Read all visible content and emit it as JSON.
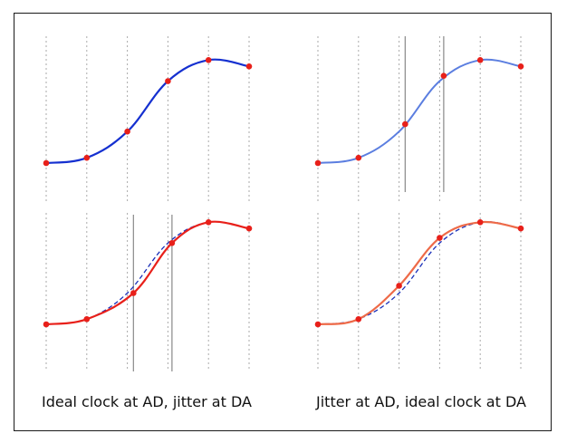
{
  "captions": {
    "left": "Ideal clock at AD, jitter at DA",
    "right": "Jitter at AD, ideal clock at DA"
  },
  "colors": {
    "frame": "#1a1a1a",
    "gridline": "#aaaaaa",
    "marker_line": "#888888",
    "sample_dot": "#e8201a",
    "ideal_curve": "#1530d0",
    "light_curve": "#5b7ee0",
    "reconstructed_red": "#e8201a",
    "reconstructed_orange": "#ee6a48",
    "dashed_reference": "#1a2fb8"
  },
  "chart_data": [
    {
      "type": "line",
      "panel": "top-left",
      "x": [
        0,
        1,
        2,
        3,
        4,
        5
      ],
      "series": [
        {
          "role": "ideal-signal",
          "values": [
            0.0,
            0.05,
            0.3,
            0.78,
            0.98,
            0.92
          ],
          "style": "solid"
        }
      ],
      "samples": [
        [
          0,
          0.0
        ],
        [
          1,
          0.05
        ],
        [
          2,
          0.3
        ],
        [
          3,
          0.78
        ],
        [
          4,
          0.98
        ],
        [
          5,
          0.92
        ]
      ]
    },
    {
      "type": "line",
      "panel": "top-right",
      "x": [
        0,
        1,
        2,
        3,
        4,
        5
      ],
      "series": [
        {
          "role": "ideal-signal",
          "values": [
            0.0,
            0.05,
            0.3,
            0.78,
            0.98,
            0.92
          ],
          "style": "solid"
        }
      ],
      "jitter_markers_x": [
        2.15,
        3.1
      ],
      "samples": [
        [
          0,
          0.0
        ],
        [
          1,
          0.05
        ],
        [
          2.15,
          0.37
        ],
        [
          3.1,
          0.83
        ],
        [
          4,
          0.98
        ],
        [
          5,
          0.92
        ]
      ]
    },
    {
      "type": "line",
      "panel": "bottom-left",
      "x": [
        0,
        1,
        2,
        3,
        4,
        5
      ],
      "series": [
        {
          "role": "original",
          "values": [
            0.0,
            0.05,
            0.3,
            0.78,
            0.98,
            0.92
          ],
          "style": "dashed"
        },
        {
          "role": "reconstructed",
          "values": [
            0.0,
            0.05,
            0.3,
            0.78,
            0.98,
            0.92
          ],
          "style": "solid"
        }
      ],
      "jitter_markers_x": [
        2.15,
        3.1
      ],
      "samples": [
        [
          0,
          0.0
        ],
        [
          1,
          0.05
        ],
        [
          2.15,
          0.3
        ],
        [
          3.1,
          0.78
        ],
        [
          4,
          0.98
        ],
        [
          5,
          0.92
        ]
      ]
    },
    {
      "type": "line",
      "panel": "bottom-right",
      "x": [
        0,
        1,
        2,
        3,
        4,
        5
      ],
      "series": [
        {
          "role": "original",
          "values": [
            0.0,
            0.05,
            0.3,
            0.78,
            0.98,
            0.92
          ],
          "style": "dashed"
        },
        {
          "role": "reconstructed",
          "values": [
            0.0,
            0.05,
            0.37,
            0.83,
            0.98,
            0.92
          ],
          "style": "solid"
        }
      ],
      "samples": [
        [
          0,
          0.0
        ],
        [
          1,
          0.05
        ],
        [
          2,
          0.37
        ],
        [
          3,
          0.83
        ],
        [
          4,
          0.98
        ],
        [
          5,
          0.92
        ]
      ]
    }
  ]
}
